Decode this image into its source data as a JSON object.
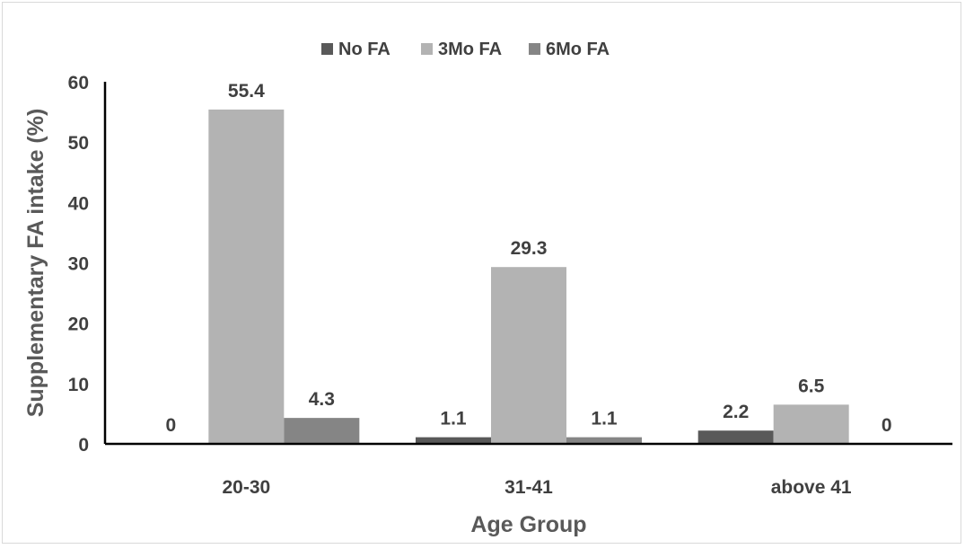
{
  "chart_data": {
    "type": "bar",
    "categories": [
      "20-30",
      "31-41",
      "above 41"
    ],
    "series": [
      {
        "name": "No FA",
        "values": [
          0,
          1.1,
          2.2
        ],
        "labels": [
          "0",
          "1.1",
          "2.2"
        ],
        "color": "#595959"
      },
      {
        "name": "3Mo FA",
        "values": [
          55.4,
          29.3,
          6.5
        ],
        "labels": [
          "55.4",
          "29.3",
          "6.5"
        ],
        "color": "#b3b3b3"
      },
      {
        "name": "6Mo FA",
        "values": [
          4.3,
          1.1,
          0
        ],
        "labels": [
          "4.3",
          "1.1",
          "0"
        ],
        "color": "#858585"
      }
    ],
    "xlabel": "Age Group",
    "ylabel": "Supplementary FA intake (%)",
    "ylim": [
      0,
      60
    ],
    "yticks": [
      "0",
      "10",
      "20",
      "30",
      "40",
      "50",
      "60"
    ],
    "grid": false,
    "legend_position": "top"
  }
}
